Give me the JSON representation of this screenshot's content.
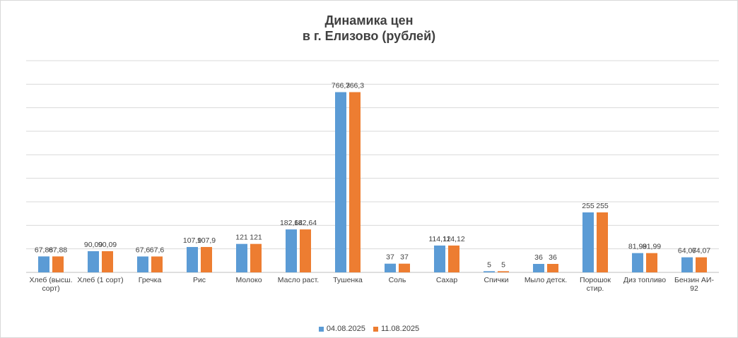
{
  "chart_data": {
    "type": "bar",
    "title": [
      "Динамика цен",
      "в г. Елизово (рублей)"
    ],
    "categories": [
      [
        "Хлеб (высш.",
        "сорт)"
      ],
      [
        "Хлеб (1 сорт)"
      ],
      [
        "Гречка"
      ],
      [
        "Рис"
      ],
      [
        "Молоко"
      ],
      [
        "Масло раст."
      ],
      [
        "Тушенка"
      ],
      [
        "Соль"
      ],
      [
        "Сахар"
      ],
      [
        "Спички"
      ],
      [
        "Мыло детск."
      ],
      [
        "Порошок",
        "стир."
      ],
      [
        "Диз топливо"
      ],
      [
        "Бензин АИ-",
        "92"
      ]
    ],
    "series": [
      {
        "name": "04.08.2025",
        "color": "#5b9bd5",
        "values": [
          67.88,
          90.09,
          67.6,
          107.9,
          121,
          182.64,
          766.3,
          37,
          114.12,
          5,
          36,
          255,
          81.99,
          64.07
        ],
        "labels": [
          "67,88",
          "90,09",
          "67,6",
          "107,9",
          "121",
          "182,64",
          "766,3",
          "37",
          "114,12",
          "5",
          "36",
          "255",
          "81,99",
          "64,07"
        ]
      },
      {
        "name": "11.08.2025",
        "color": "#ed7d31",
        "values": [
          67.88,
          90.09,
          67.6,
          107.9,
          121,
          182.64,
          766.3,
          37,
          114.12,
          5,
          36,
          255,
          81.99,
          64.07
        ],
        "labels": [
          "67,88",
          "90,09",
          "67,6",
          "107,9",
          "121",
          "182,64",
          "766,3",
          "37",
          "114,12",
          "5",
          "36",
          "255",
          "81,99",
          "64,07"
        ]
      }
    ],
    "ylim": [
      0,
      900
    ],
    "grid": true,
    "legend_position": "bottom"
  }
}
